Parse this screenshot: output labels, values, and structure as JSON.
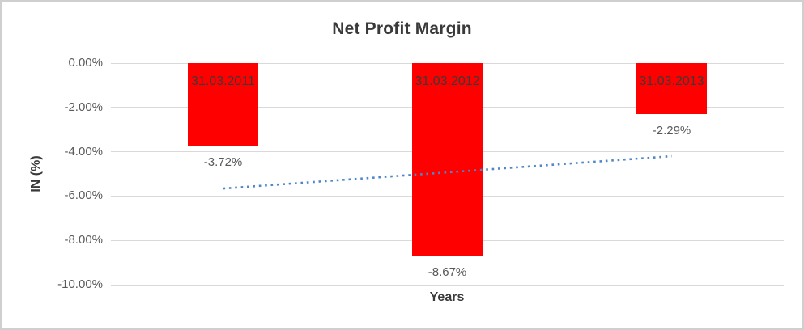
{
  "chart_data": {
    "type": "bar",
    "title": "Net Profit Margin",
    "xlabel": "Years",
    "ylabel": "IN (%)",
    "categories": [
      "31.03.2011",
      "31.03.2012",
      "31.03.2013"
    ],
    "values": [
      -3.72,
      -8.67,
      -2.29
    ],
    "value_labels": [
      "-3.72%",
      "-8.67%",
      "-2.29%"
    ],
    "y_ticks": [
      {
        "label": "0.00%",
        "value": 0
      },
      {
        "label": "-2.00%",
        "value": -2
      },
      {
        "label": "-4.00%",
        "value": -4
      },
      {
        "label": "-6.00%",
        "value": -6
      },
      {
        "label": "-8.00%",
        "value": -8
      },
      {
        "label": "-10.00%",
        "value": -10
      }
    ],
    "ylim": [
      -10,
      0
    ],
    "grid": true,
    "legend": "none",
    "bar_color": "#ff0000",
    "category_label_color": "#3a3a3a",
    "value_label_color": "#595959",
    "gridline_color": "#d9d9d9",
    "trendline": {
      "type": "linear",
      "style": "dotted",
      "color": "#4e86c8",
      "start_value": -5.66,
      "end_value": -4.2
    }
  }
}
